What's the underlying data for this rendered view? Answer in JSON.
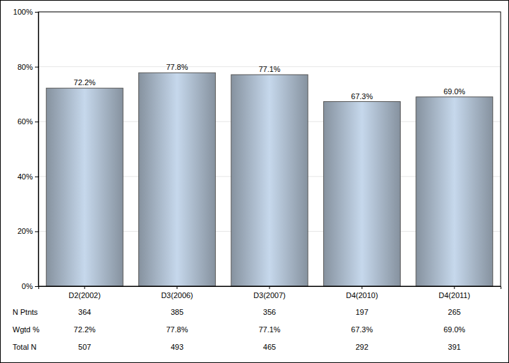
{
  "chart_data": {
    "type": "bar",
    "categories": [
      "D2(2002)",
      "D3(2006)",
      "D3(2007)",
      "D4(2010)",
      "D4(2011)"
    ],
    "values": [
      72.2,
      77.8,
      77.1,
      67.3,
      69.0
    ],
    "value_labels": [
      "72.2%",
      "77.8%",
      "77.1%",
      "67.3%",
      "69.0%"
    ],
    "color": "#c6d8ec",
    "ylim": [
      0,
      100
    ],
    "yticks": [
      {
        "value": 0,
        "label": "0%"
      },
      {
        "value": 20,
        "label": "20%"
      },
      {
        "value": 40,
        "label": "40%"
      },
      {
        "value": 60,
        "label": "60%"
      },
      {
        "value": 80,
        "label": "80%"
      },
      {
        "value": 100,
        "label": "100%"
      }
    ],
    "grid": true,
    "data_labels": true,
    "table": {
      "rows": [
        {
          "label": "N Ptnts",
          "values": [
            364,
            385,
            356,
            197,
            265
          ]
        },
        {
          "label": "Wgtd %",
          "values": [
            72.2,
            77.8,
            77.1,
            67.3,
            69.0
          ],
          "value_labels": [
            "72.2%",
            "77.8%",
            "77.1%",
            "67.3%",
            "69.0%"
          ]
        },
        {
          "label": "Total N",
          "values": [
            507,
            493,
            465,
            292,
            391
          ]
        }
      ]
    }
  }
}
